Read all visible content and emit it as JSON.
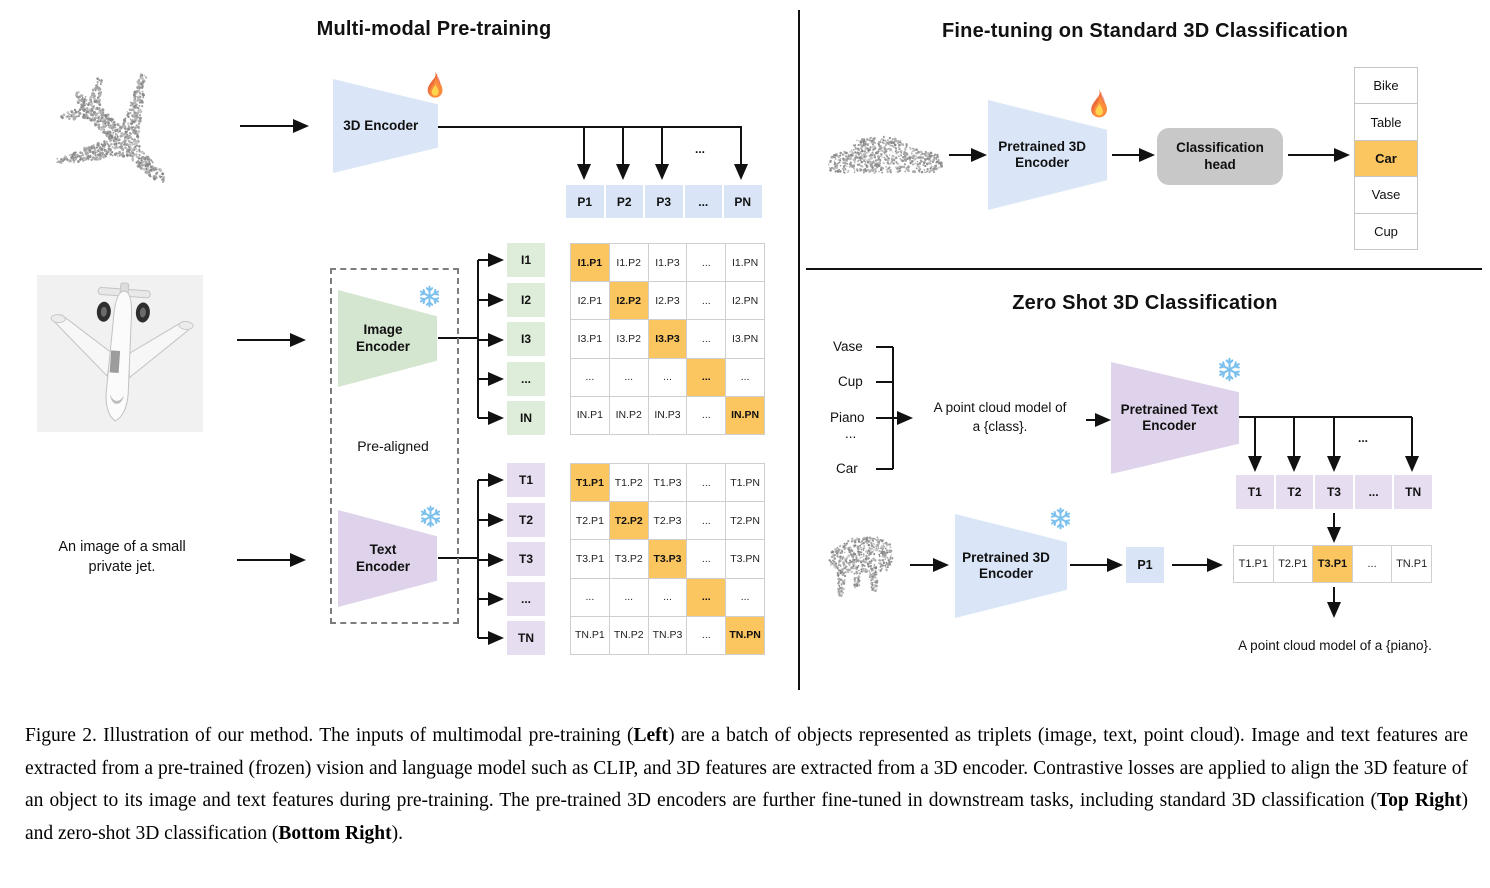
{
  "left_panel": {
    "title": "Multi-modal Pre-training",
    "encoder_3d_label": "3D Encoder",
    "image_encoder_label": "Image\nEncoder",
    "text_encoder_label": "Text\nEncoder",
    "pre_aligned_label": "Pre-aligned",
    "input_text": "An image of a small\nprivate jet.",
    "ellipsis": "...",
    "p_row": [
      "P1",
      "P2",
      "P3",
      "...",
      "PN"
    ],
    "i_col": [
      "I1",
      "I2",
      "I3",
      "...",
      "IN"
    ],
    "t_col": [
      "T1",
      "T2",
      "T3",
      "...",
      "TN"
    ],
    "image_matrix_rows": [
      [
        "I1.P1",
        "I1.P2",
        "I1.P3",
        "...",
        "I1.PN"
      ],
      [
        "I2.P1",
        "I2.P2",
        "I2.P3",
        "...",
        "I2.PN"
      ],
      [
        "I3.P1",
        "I3.P2",
        "I3.P3",
        "...",
        "I3.PN"
      ],
      [
        "...",
        "...",
        "...",
        "...",
        "..."
      ],
      [
        "IN.P1",
        "IN.P2",
        "IN.P3",
        "...",
        "IN.PN"
      ]
    ],
    "text_matrix_rows": [
      [
        "T1.P1",
        "T1.P2",
        "T1.P3",
        "...",
        "T1.PN"
      ],
      [
        "T2.P1",
        "T2.P2",
        "T2.P3",
        "...",
        "T2.PN"
      ],
      [
        "T3.P1",
        "T3.P2",
        "T3.P3",
        "...",
        "T3.PN"
      ],
      [
        "...",
        "...",
        "...",
        "...",
        "..."
      ],
      [
        "TN.P1",
        "TN.P2",
        "TN.P3",
        "...",
        "TN.PN"
      ]
    ]
  },
  "finetune_panel": {
    "title": "Fine-tuning on Standard 3D Classification",
    "encoder_label": "Pretrained 3D\nEncoder",
    "head_label": "Classification\nhead",
    "classes": [
      "Bike",
      "Table",
      "Car",
      "Vase",
      "Cup"
    ],
    "highlighted_class_index": 2
  },
  "zeroshot_panel": {
    "title": "Zero Shot 3D Classification",
    "class_prompts": [
      "Vase",
      "Cup",
      "Piano",
      "...",
      "Car"
    ],
    "prompt_text": "A point cloud model of\na {class}.",
    "text_encoder_label": "Pretrained Text\nEncoder",
    "encoder_3d_label": "Pretrained 3D\nEncoder",
    "p1_label": "P1",
    "ellipsis": "...",
    "t_row": [
      "T1",
      "T2",
      "T3",
      "...",
      "TN"
    ],
    "result_row": [
      "T1.P1",
      "T2.P1",
      "T3.P1",
      "...",
      "TN.P1"
    ],
    "result_highlight_index": 2,
    "result_text": "A point cloud model of a {piano}."
  },
  "icons": {
    "flame": "flame-icon",
    "snowflake": "snowflake-icon"
  },
  "colors": {
    "highlight_orange": "#FBC560",
    "blue": "#D9E4F6",
    "green": "#DEECDA",
    "purple": "#E7DDF0",
    "head_gray": "#C8C8C8"
  },
  "caption": {
    "segments": [
      {
        "text": "Figure 2. Illustration of our method. The inputs of multimodal pre-training (",
        "bold": false
      },
      {
        "text": "Left",
        "bold": true
      },
      {
        "text": ") are a batch of objects represented as triplets (image, text, point cloud). Image and text features are extracted from a pre-trained (frozen) vision and language model such as CLIP, and 3D features are extracted from a 3D encoder. Contrastive losses are applied to align the 3D feature of an object to its image and text features during pre-training. The pre-trained 3D encoders are further fine-tuned in downstream tasks, including standard 3D classification (",
        "bold": false
      },
      {
        "text": "Top Right",
        "bold": true
      },
      {
        "text": ") and zero-shot 3D classification (",
        "bold": false
      },
      {
        "text": "Bottom Right",
        "bold": true
      },
      {
        "text": ").",
        "bold": false
      }
    ]
  }
}
